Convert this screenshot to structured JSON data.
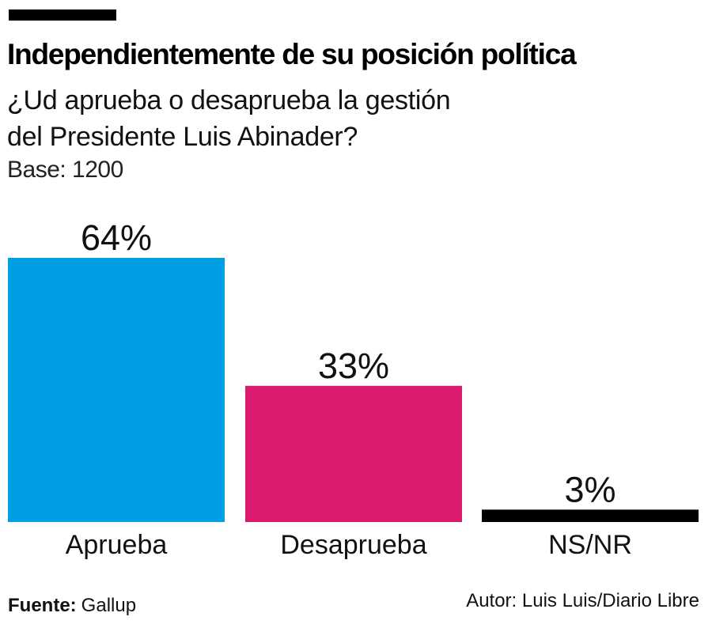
{
  "header": {
    "title": "Independientemente de su posición política",
    "subtitle_line1": "¿Ud aprueba o desaprueba la gestión",
    "subtitle_line2": "del Presidente Luis Abinader?",
    "base": "Base: 1200"
  },
  "footer": {
    "source_label": "Fuente:",
    "source_value": "Gallup",
    "author": "Autor: Luis Luis/Diario Libre"
  },
  "chart_data": {
    "type": "bar",
    "title": "Independientemente de su posición política",
    "subtitle": "¿Ud aprueba o desaprueba la gestión del Presidente Luis Abinader?",
    "note": "Base: 1200",
    "categories": [
      "Aprueba",
      "Desaprueba",
      "NS/NR"
    ],
    "values": [
      64,
      33,
      3
    ],
    "value_labels": [
      "64%",
      "33%",
      "3%"
    ],
    "colors": [
      "#009fe3",
      "#dc1a6e",
      "#000000"
    ],
    "unit": "%",
    "xlabel": "",
    "ylabel": "",
    "ylim": [
      0,
      64
    ],
    "grid": false,
    "legend": "none"
  }
}
